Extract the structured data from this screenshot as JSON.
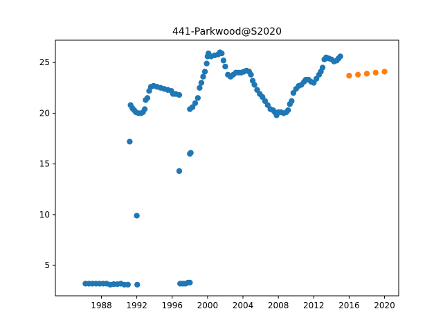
{
  "chart_data": {
    "type": "scatter",
    "title": "441-Parkwood@S2020",
    "xlabel": "",
    "ylabel": "",
    "xlim": [
      1982.8,
      2021.6
    ],
    "ylim": [
      2.0,
      27.2
    ],
    "grid": false,
    "x_ticks": [
      1988,
      1992,
      1996,
      2000,
      2004,
      2008,
      2012,
      2016,
      2020
    ],
    "y_ticks": [
      5,
      10,
      15,
      20,
      25
    ],
    "series": [
      {
        "color": "#1f77b4",
        "points": [
          [
            1986.2,
            3.2
          ],
          [
            1986.6,
            3.2
          ],
          [
            1987.0,
            3.2
          ],
          [
            1987.4,
            3.2
          ],
          [
            1987.8,
            3.2
          ],
          [
            1988.2,
            3.2
          ],
          [
            1988.6,
            3.2
          ],
          [
            1989.0,
            3.1
          ],
          [
            1989.4,
            3.15
          ],
          [
            1989.8,
            3.15
          ],
          [
            1990.2,
            3.2
          ],
          [
            1990.6,
            3.1
          ],
          [
            1991.0,
            3.1
          ],
          [
            1991.2,
            17.2
          ],
          [
            1991.3,
            20.8
          ],
          [
            1991.5,
            20.5
          ],
          [
            1991.7,
            20.3
          ],
          [
            1991.9,
            20.1
          ],
          [
            1992.0,
            9.9
          ],
          [
            1992.05,
            3.1
          ],
          [
            1992.2,
            20.0
          ],
          [
            1992.5,
            20.0
          ],
          [
            1992.7,
            20.1
          ],
          [
            1992.9,
            20.4
          ],
          [
            1993.0,
            21.3
          ],
          [
            1993.2,
            21.5
          ],
          [
            1993.4,
            22.2
          ],
          [
            1993.6,
            22.6
          ],
          [
            1993.9,
            22.7
          ],
          [
            1994.3,
            22.6
          ],
          [
            1994.7,
            22.5
          ],
          [
            1995.1,
            22.4
          ],
          [
            1995.5,
            22.3
          ],
          [
            1995.9,
            22.2
          ],
          [
            1996.1,
            21.9
          ],
          [
            1996.4,
            21.9
          ],
          [
            1996.8,
            21.8
          ],
          [
            1996.8,
            14.3
          ],
          [
            1996.9,
            3.2
          ],
          [
            1997.2,
            3.2
          ],
          [
            1997.5,
            3.2
          ],
          [
            1997.8,
            3.3
          ],
          [
            1998.0,
            3.3
          ],
          [
            1998.0,
            16.0
          ],
          [
            1998.1,
            16.1
          ],
          [
            1998.0,
            20.4
          ],
          [
            1998.3,
            20.6
          ],
          [
            1998.6,
            21.0
          ],
          [
            1998.9,
            21.5
          ],
          [
            1999.1,
            22.5
          ],
          [
            1999.3,
            23.0
          ],
          [
            1999.5,
            23.6
          ],
          [
            1999.7,
            24.1
          ],
          [
            1999.9,
            24.9
          ],
          [
            2000.0,
            25.6
          ],
          [
            2000.1,
            25.9
          ],
          [
            2000.4,
            25.6
          ],
          [
            2000.8,
            25.7
          ],
          [
            2001.2,
            25.8
          ],
          [
            2001.4,
            26.0
          ],
          [
            2001.6,
            25.9
          ],
          [
            2001.8,
            25.2
          ],
          [
            2002.0,
            24.6
          ],
          [
            2002.3,
            23.8
          ],
          [
            2002.6,
            23.6
          ],
          [
            2002.9,
            23.8
          ],
          [
            2003.2,
            24.0
          ],
          [
            2003.5,
            24.0
          ],
          [
            2003.8,
            24.0
          ],
          [
            2004.1,
            24.1
          ],
          [
            2004.4,
            24.2
          ],
          [
            2004.7,
            24.1
          ],
          [
            2004.9,
            23.8
          ],
          [
            2005.1,
            23.2
          ],
          [
            2005.3,
            22.8
          ],
          [
            2005.6,
            22.3
          ],
          [
            2005.9,
            21.9
          ],
          [
            2006.2,
            21.6
          ],
          [
            2006.5,
            21.2
          ],
          [
            2006.8,
            20.8
          ],
          [
            2007.1,
            20.4
          ],
          [
            2007.4,
            20.3
          ],
          [
            2007.6,
            20.1
          ],
          [
            2007.8,
            19.8
          ],
          [
            2008.0,
            20.1
          ],
          [
            2008.3,
            20.1
          ],
          [
            2008.6,
            20.0
          ],
          [
            2008.9,
            20.1
          ],
          [
            2009.1,
            20.3
          ],
          [
            2009.3,
            20.9
          ],
          [
            2009.5,
            21.2
          ],
          [
            2009.7,
            22.0
          ],
          [
            2010.0,
            22.4
          ],
          [
            2010.3,
            22.7
          ],
          [
            2010.6,
            22.8
          ],
          [
            2010.9,
            23.1
          ],
          [
            2011.1,
            23.3
          ],
          [
            2011.4,
            23.3
          ],
          [
            2011.7,
            23.1
          ],
          [
            2012.0,
            23.0
          ],
          [
            2012.3,
            23.4
          ],
          [
            2012.6,
            23.8
          ],
          [
            2012.8,
            24.1
          ],
          [
            2013.0,
            24.5
          ],
          [
            2013.2,
            25.3
          ],
          [
            2013.4,
            25.5
          ],
          [
            2013.7,
            25.4
          ],
          [
            2014.0,
            25.3
          ],
          [
            2014.3,
            25.1
          ],
          [
            2014.6,
            25.2
          ],
          [
            2014.8,
            25.4
          ],
          [
            2015.0,
            25.6
          ]
        ]
      },
      {
        "color": "#ff7f0e",
        "points": [
          [
            2016.0,
            23.7
          ],
          [
            2017.0,
            23.8
          ],
          [
            2018.0,
            23.9
          ],
          [
            2019.0,
            24.0
          ],
          [
            2020.0,
            24.1
          ]
        ]
      }
    ]
  }
}
